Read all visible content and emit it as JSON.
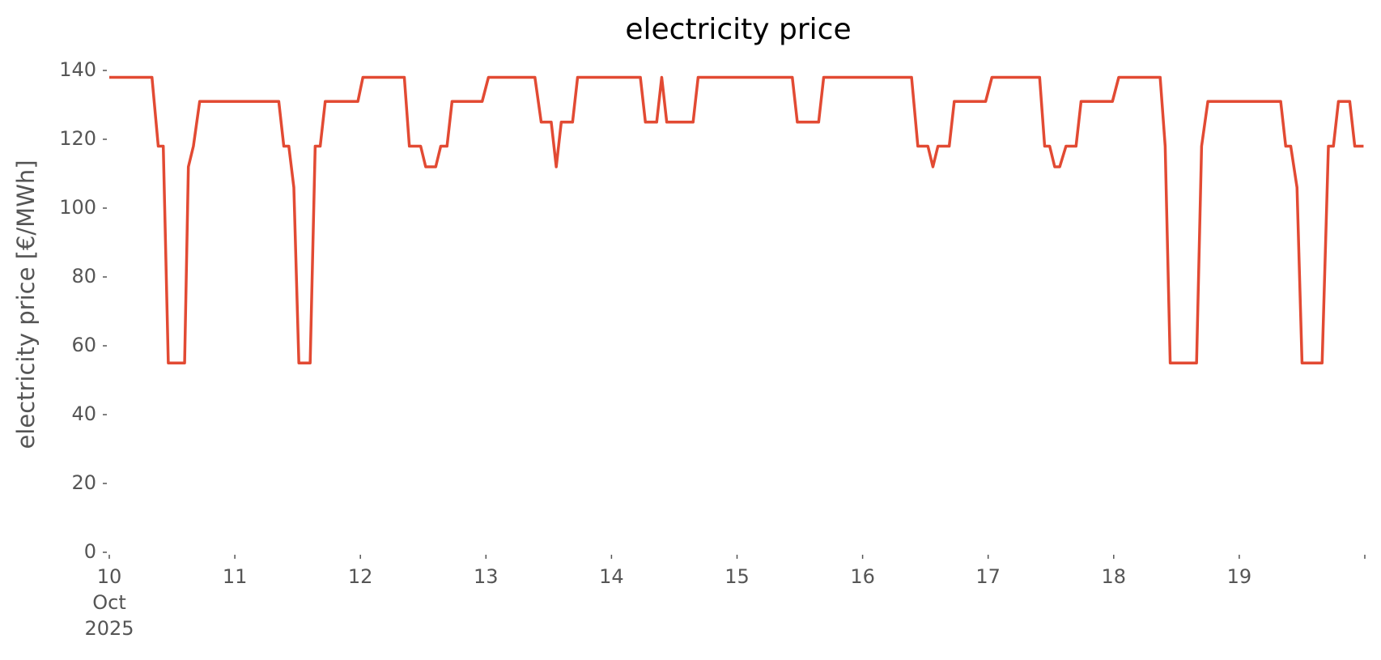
{
  "chart_data": {
    "type": "line",
    "title": "electricity price",
    "ylabel": "electricity price [€/MWh]",
    "color": "#e24a33",
    "x": [
      10.0,
      10.34,
      10.39,
      10.43,
      10.47,
      10.6,
      10.63,
      10.67,
      10.72,
      11.35,
      11.39,
      11.43,
      11.47,
      11.51,
      11.6,
      11.64,
      11.68,
      11.72,
      11.98,
      12.02,
      12.35,
      12.39,
      12.48,
      12.52,
      12.6,
      12.64,
      12.69,
      12.73,
      12.97,
      13.02,
      13.39,
      13.44,
      13.52,
      13.56,
      13.6,
      13.69,
      13.73,
      14.23,
      14.27,
      14.36,
      14.4,
      14.44,
      14.65,
      14.69,
      15.44,
      15.48,
      15.65,
      15.69,
      16.39,
      16.44,
      16.52,
      16.56,
      16.6,
      16.69,
      16.73,
      16.98,
      17.03,
      17.41,
      17.45,
      17.49,
      17.53,
      17.57,
      17.62,
      17.7,
      17.74,
      17.99,
      18.04,
      18.37,
      18.41,
      18.45,
      18.66,
      18.7,
      18.75,
      19.33,
      19.37,
      19.41,
      19.46,
      19.5,
      19.66,
      19.71,
      19.75,
      19.79,
      19.88,
      19.92,
      19.99
    ],
    "values": [
      138,
      138,
      118,
      118,
      55,
      55,
      112,
      118,
      131,
      131,
      118,
      118,
      106,
      55,
      55,
      118,
      118,
      131,
      131,
      138,
      138,
      118,
      118,
      112,
      112,
      118,
      118,
      131,
      131,
      138,
      138,
      125,
      125,
      112,
      125,
      125,
      138,
      138,
      125,
      125,
      138,
      125,
      125,
      138,
      138,
      125,
      125,
      138,
      138,
      118,
      118,
      112,
      118,
      118,
      131,
      131,
      138,
      138,
      118,
      118,
      112,
      112,
      118,
      118,
      131,
      131,
      138,
      138,
      118,
      55,
      55,
      118,
      131,
      131,
      118,
      118,
      106,
      55,
      55,
      118,
      118,
      131,
      131,
      118,
      118
    ],
    "xlim": [
      10,
      20
    ],
    "xticks": [
      {
        "value": 10,
        "label": "10\nOct\n2025"
      },
      11,
      12,
      13,
      14,
      15,
      16,
      17,
      18,
      19
    ],
    "ylim": [
      0,
      140
    ],
    "yticks": [
      0,
      20,
      40,
      60,
      80,
      100,
      120,
      140
    ]
  }
}
